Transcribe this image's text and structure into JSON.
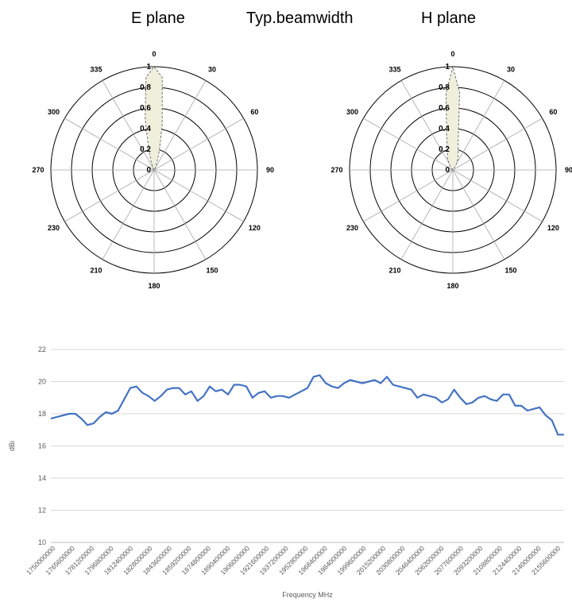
{
  "titles": {
    "left": "E plane",
    "center": "Typ.beamwidth",
    "right": "H plane"
  },
  "colors": {
    "polar_fill": "#eef0dc",
    "polar_stroke": "#6f6f6f",
    "line": "#4472c4",
    "grid": "#d9d9d9"
  },
  "chart_data": [
    {
      "type": "polar",
      "title": "E plane",
      "angle_labels": [
        "0",
        "30",
        "60",
        "90",
        "120",
        "150",
        "180",
        "210",
        "230",
        "270",
        "300",
        "335"
      ],
      "radial_ticks": [
        "0",
        "0.2",
        "0.4",
        "0.6",
        "0.8",
        "1"
      ],
      "rlim": [
        0,
        1
      ],
      "pattern": {
        "angles": [
          0,
          5,
          10,
          15,
          20,
          30,
          335,
          340,
          345,
          350,
          355
        ],
        "values": [
          1.0,
          0.9,
          0.45,
          0.2,
          0.08,
          0.03,
          0.03,
          0.08,
          0.2,
          0.5,
          0.9
        ]
      }
    },
    {
      "type": "polar",
      "title": "H plane",
      "angle_labels": [
        "0",
        "30",
        "60",
        "90",
        "120",
        "150",
        "180",
        "210",
        "230",
        "270",
        "300",
        "335"
      ],
      "radial_ticks": [
        "0",
        "0.2",
        "0.4",
        "0.6",
        "0.8",
        "1"
      ],
      "rlim": [
        0,
        1
      ],
      "pattern": {
        "angles": [
          0,
          5,
          10,
          15,
          25,
          35,
          325,
          335,
          345,
          350,
          355
        ],
        "values": [
          1.0,
          0.75,
          0.3,
          0.2,
          0.12,
          0.05,
          0.05,
          0.12,
          0.2,
          0.35,
          0.75
        ]
      }
    },
    {
      "type": "line",
      "xlabel": "Frequency MHz",
      "ylabel": "dBi",
      "ylim": [
        10,
        22
      ],
      "yticks": [
        10,
        12,
        14,
        16,
        18,
        20,
        22
      ],
      "grid": true,
      "xlim": [
        1750000000,
        2170000000
      ],
      "xtick_labels": [
        "1750000000",
        "1765600000",
        "1781200000",
        "1796800000",
        "1812400000",
        "1828000000",
        "1843600000",
        "1859200000",
        "1874800000",
        "1890400000",
        "1906000000",
        "1921600000",
        "1937200000",
        "1952800000",
        "1968400000",
        "1984000000",
        "1999600000",
        "2015200000",
        "2030800000",
        "2046400000",
        "2062000000",
        "2077600000",
        "2093200000",
        "2108800000",
        "2124400000",
        "2140000000",
        "2155600000"
      ],
      "series": [
        {
          "x": [
            1750000000,
            1755000000,
            1760000000,
            1765000000,
            1770000000,
            1775000000,
            1780000000,
            1785000000,
            1790000000,
            1795000000,
            1800000000,
            1805000000,
            1810000000,
            1815000000,
            1820000000,
            1825000000,
            1830000000,
            1835000000,
            1840000000,
            1845000000,
            1850000000,
            1855000000,
            1860000000,
            1865000000,
            1870000000,
            1875000000,
            1880000000,
            1885000000,
            1890000000,
            1895000000,
            1900000000,
            1905000000,
            1910000000,
            1915000000,
            1920000000,
            1925000000,
            1930000000,
            1935000000,
            1940000000,
            1945000000,
            1950000000,
            1955000000,
            1960000000,
            1965000000,
            1970000000,
            1975000000,
            1980000000,
            1985000000,
            1990000000,
            1995000000,
            2000000000,
            2005000000,
            2010000000,
            2015000000,
            2020000000,
            2025000000,
            2030000000,
            2035000000,
            2040000000,
            2045000000,
            2050000000,
            2055000000,
            2060000000,
            2065000000,
            2070000000,
            2075000000,
            2080000000,
            2085000000,
            2090000000,
            2095000000,
            2100000000,
            2105000000,
            2110000000,
            2115000000,
            2120000000,
            2125000000,
            2130000000,
            2135000000,
            2140000000,
            2145000000,
            2150000000,
            2155000000,
            2160000000,
            2165000000,
            2170000000
          ],
          "y": [
            17.7,
            17.8,
            17.9,
            18.0,
            18.0,
            17.7,
            17.3,
            17.4,
            17.8,
            18.1,
            18.0,
            18.2,
            18.9,
            19.6,
            19.7,
            19.3,
            19.1,
            18.8,
            19.1,
            19.5,
            19.6,
            19.6,
            19.2,
            19.4,
            18.8,
            19.1,
            19.7,
            19.4,
            19.5,
            19.2,
            19.8,
            19.8,
            19.7,
            19.0,
            19.3,
            19.4,
            19.0,
            19.1,
            19.1,
            19.0,
            19.2,
            19.4,
            19.6,
            20.3,
            20.4,
            19.9,
            19.7,
            19.6,
            19.9,
            20.1,
            20.0,
            19.9,
            20.0,
            20.1,
            19.9,
            20.3,
            19.8,
            19.7,
            19.6,
            19.5,
            19.0,
            19.2,
            19.1,
            19.0,
            18.7,
            18.9,
            19.5,
            19.0,
            18.6,
            18.7,
            19.0,
            19.1,
            18.9,
            18.8,
            19.2,
            19.2,
            18.5,
            18.5,
            18.2,
            18.3,
            18.4,
            17.9,
            17.6,
            16.7,
            16.7
          ]
        }
      ]
    }
  ]
}
